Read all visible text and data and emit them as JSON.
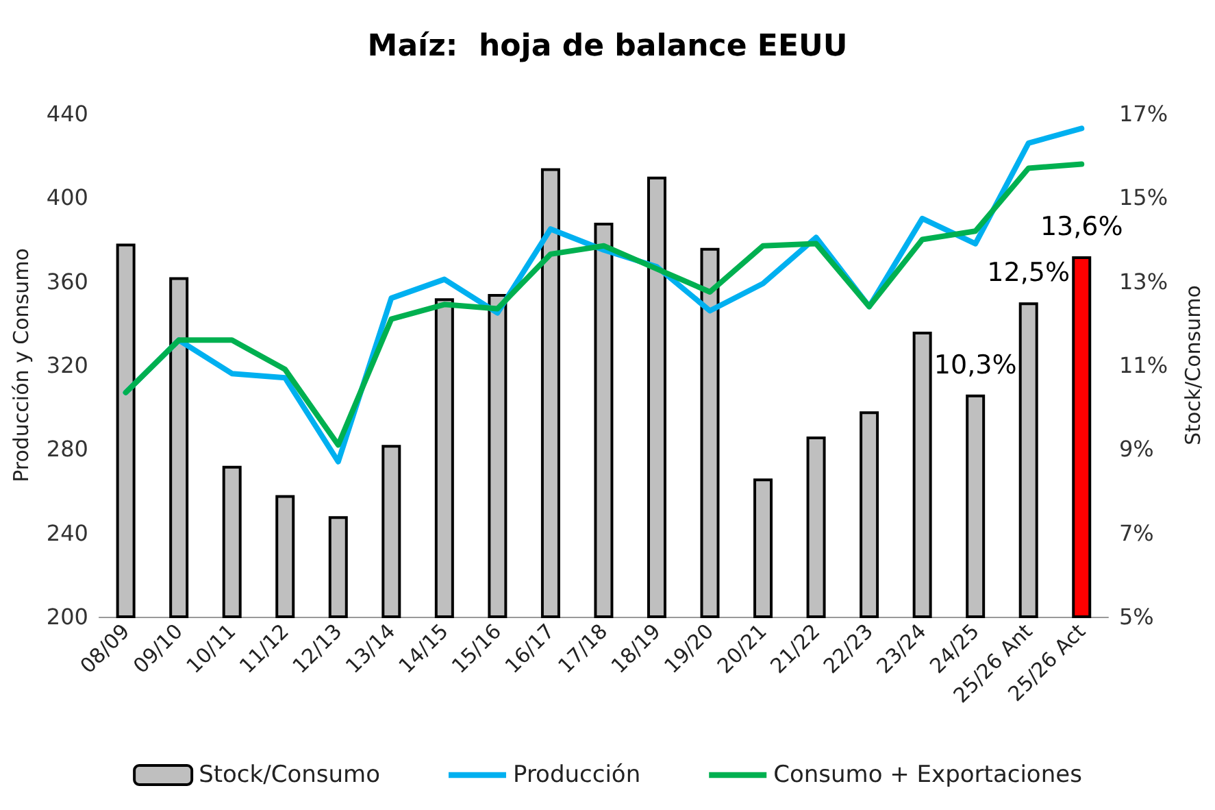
{
  "chart_data": {
    "type": "bar",
    "title": "Maíz:  hoja de balance EEUU",
    "ylabel": "Producción y Consumo",
    "y2label": "Stock/Consumo",
    "categories": [
      "08/09",
      "09/10",
      "10/11",
      "11/12",
      "12/13",
      "13/14",
      "14/15",
      "15/16",
      "16/17",
      "17/18",
      "18/19",
      "19/20",
      "20/21",
      "21/22",
      "22/23",
      "23/24",
      "24/25",
      "25/26 Ant",
      "25/26 Act"
    ],
    "series": [
      {
        "name": "Stock/Consumo",
        "axis": "y2",
        "color": "#bfbfbf",
        "colors": [
          "#bfbfbf",
          "#bfbfbf",
          "#bfbfbf",
          "#bfbfbf",
          "#bfbfbf",
          "#bfbfbf",
          "#bfbfbf",
          "#bfbfbf",
          "#bfbfbf",
          "#bfbfbf",
          "#bfbfbf",
          "#bfbfbf",
          "#bfbfbf",
          "#bfbfbf",
          "#bfbfbf",
          "#bfbfbf",
          "#bfbfbf",
          "#bfbfbf",
          "#ff0000"
        ],
        "values": [
          13.9,
          13.1,
          8.6,
          7.9,
          7.4,
          9.1,
          12.6,
          12.7,
          15.7,
          14.4,
          15.5,
          13.8,
          8.3,
          9.3,
          9.9,
          11.8,
          10.3,
          12.5,
          13.6
        ],
        "value_labels": [
          null,
          null,
          null,
          null,
          null,
          null,
          null,
          null,
          null,
          null,
          null,
          null,
          null,
          null,
          null,
          null,
          "10,3%",
          "12,5%",
          "13,6%"
        ]
      },
      {
        "name": "Producción",
        "type": "line",
        "color": "#00b0f0",
        "values": [
          307,
          332,
          316,
          314,
          274,
          352,
          361,
          345,
          385,
          375,
          367,
          346,
          359,
          381,
          348,
          390,
          378,
          426,
          433
        ]
      },
      {
        "name": "Consumo + Exportaciones",
        "type": "line",
        "color": "#00b050",
        "values": [
          307,
          332,
          332,
          318,
          282,
          342,
          349,
          347,
          373,
          377,
          366,
          355,
          377,
          378,
          348,
          380,
          384,
          414,
          416
        ]
      }
    ],
    "ylim": [
      200,
      440
    ],
    "yticks": [
      200,
      240,
      280,
      320,
      360,
      400,
      440
    ],
    "y2lim": [
      5,
      17
    ],
    "y2ticks": [
      {
        "value": 5,
        "label": "5%"
      },
      {
        "value": 7,
        "label": "7%"
      },
      {
        "value": 9,
        "label": "9%"
      },
      {
        "value": 11,
        "label": "11%"
      },
      {
        "value": 13,
        "label": "13%"
      },
      {
        "value": 15,
        "label": "15%"
      },
      {
        "value": 17,
        "label": "17%"
      }
    ],
    "grid": false,
    "legend": "bottom",
    "marker": "none",
    "line_style": "solid"
  }
}
